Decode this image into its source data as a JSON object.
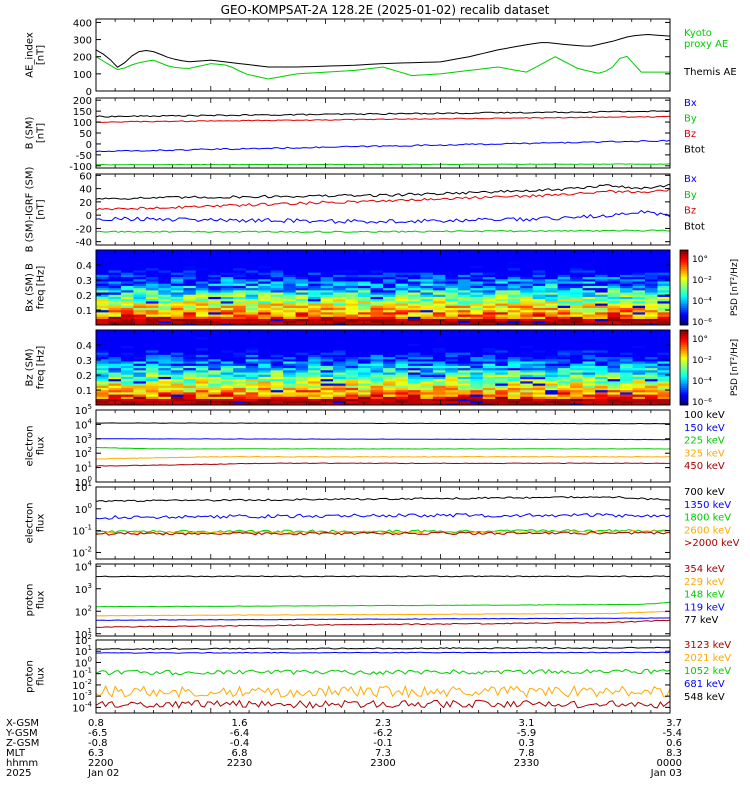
{
  "chart_data": {
    "type": "line",
    "title": "GEO-KOMPSAT-2A 128.2E (2025-01-02) recalib dataset",
    "colors": {
      "black": "#000000",
      "blue": "#0000ff",
      "green": "#00cc00",
      "red": "#dd0000",
      "orange": "#ffaa00",
      "darkred": "#aa0000"
    },
    "panels": [
      {
        "id": "ae",
        "ylabel": [
          "AE_index",
          "[nT]"
        ],
        "scale": "linear",
        "ylim": [
          0,
          420
        ],
        "ticks": [
          0,
          100,
          200,
          300,
          400
        ],
        "legend": [
          {
            "label": "Kyoto",
            "color": "green"
          },
          {
            "label": "proxy AE",
            "color": "green"
          },
          {
            "label": "Themis AE",
            "color": "black"
          }
        ],
        "series": [
          {
            "color": "black",
            "x": [
              0,
              0.02,
              0.04,
              0.06,
              0.08,
              0.1,
              0.13,
              0.16,
              0.2,
              0.25,
              0.3,
              0.35,
              0.4,
              0.45,
              0.5,
              0.55,
              0.6,
              0.65,
              0.7,
              0.75,
              0.78,
              0.82,
              0.86,
              0.9,
              0.93,
              0.96,
              1.0
            ],
            "y": [
              240,
              200,
              130,
              200,
              240,
              230,
              190,
              170,
              180,
              160,
              140,
              140,
              145,
              150,
              160,
              165,
              170,
              200,
              240,
              270,
              285,
              270,
              260,
              290,
              320,
              330,
              320
            ]
          },
          {
            "color": "green",
            "x": [
              0,
              0.02,
              0.04,
              0.06,
              0.08,
              0.1,
              0.13,
              0.16,
              0.2,
              0.23,
              0.26,
              0.3,
              0.35,
              0.4,
              0.45,
              0.5,
              0.55,
              0.6,
              0.65,
              0.7,
              0.75,
              0.8,
              0.84,
              0.88,
              0.9,
              0.92,
              0.95,
              1.0
            ],
            "y": [
              200,
              160,
              120,
              150,
              170,
              180,
              140,
              130,
              160,
              150,
              100,
              70,
              100,
              110,
              120,
              140,
              90,
              100,
              120,
              140,
              110,
              200,
              130,
              100,
              140,
              220,
              110,
              110
            ]
          }
        ]
      },
      {
        "id": "bsm",
        "ylabel": [
          "B (SM)",
          "[nT]"
        ],
        "scale": "linear",
        "ylim": [
          -110,
          210
        ],
        "ticks": [
          -100,
          -50,
          0,
          50,
          100,
          150,
          200
        ],
        "legend": [
          {
            "label": "Bx",
            "color": "blue"
          },
          {
            "label": "By",
            "color": "green"
          },
          {
            "label": "Bz",
            "color": "red"
          },
          {
            "label": "Btot",
            "color": "black"
          }
        ],
        "series": [
          {
            "color": "black",
            "x": [
              0,
              1
            ],
            "y": [
              125,
              150
            ],
            "noise": 3
          },
          {
            "color": "red",
            "x": [
              0,
              1
            ],
            "y": [
              100,
              125
            ],
            "noise": 2
          },
          {
            "color": "blue",
            "x": [
              0,
              1
            ],
            "y": [
              -35,
              15
            ],
            "noise": 3
          },
          {
            "color": "green",
            "x": [
              0,
              1
            ],
            "y": [
              -95,
              -92
            ],
            "noise": 1
          }
        ]
      },
      {
        "id": "bsmigrf",
        "ylabel": [
          "B (SM)-IGRF (SM)",
          "[nT]"
        ],
        "scale": "linear",
        "ylim": [
          -45,
          62
        ],
        "ticks": [
          -40,
          -20,
          0,
          20,
          40,
          60
        ],
        "legend": [
          {
            "label": "Bx",
            "color": "blue"
          },
          {
            "label": "By",
            "color": "green"
          },
          {
            "label": "Bz",
            "color": "red"
          },
          {
            "label": "Btot",
            "color": "black"
          }
        ],
        "series": [
          {
            "color": "black",
            "x": [
              0,
              0.5,
              0.8,
              0.9,
              0.95,
              1.0
            ],
            "y": [
              25,
              30,
              38,
              45,
              40,
              45
            ],
            "noise": 2
          },
          {
            "color": "red",
            "x": [
              0,
              0.5,
              0.8,
              0.9,
              0.95,
              1.0
            ],
            "y": [
              8,
              22,
              30,
              36,
              34,
              38
            ],
            "noise": 2
          },
          {
            "color": "blue",
            "x": [
              0,
              0.5,
              0.8,
              0.9,
              0.95,
              1.0
            ],
            "y": [
              -5,
              -10,
              -5,
              0,
              5,
              0
            ],
            "noise": 3
          },
          {
            "color": "green",
            "x": [
              0,
              0.5,
              1.0
            ],
            "y": [
              -25,
              -25,
              -23
            ],
            "noise": 1
          }
        ]
      },
      {
        "id": "specx",
        "ylabel": [
          "Bx (SM) B",
          "freq [Hz]"
        ],
        "scale": "spectrogram",
        "ylim": [
          0.0,
          0.5
        ],
        "ticks": [
          0.1,
          0.2,
          0.3,
          0.4
        ],
        "colorbar": {
          "label": "PSD [nT²/Hz]",
          "ticks": [
            "10°",
            "10⁻²",
            "10⁻⁴",
            "10⁻⁶"
          ]
        }
      },
      {
        "id": "specz",
        "ylabel": [
          "Bz (SM)",
          "freq [Hz]"
        ],
        "scale": "spectrogram",
        "ylim": [
          0.0,
          0.5
        ],
        "ticks": [
          0.1,
          0.2,
          0.3,
          0.4
        ],
        "colorbar": {
          "label": "PSD [nT²/Hz]",
          "ticks": [
            "10°",
            "10⁻²",
            "10⁻⁴",
            "10⁻⁶"
          ]
        }
      },
      {
        "id": "eflux1",
        "ylabel": [
          "electron",
          "flux"
        ],
        "scale": "log",
        "ylim": [
          0,
          5
        ],
        "ticks": [
          {
            "v": 0,
            "base": "10",
            "exp": "0"
          },
          {
            "v": 1,
            "base": "10",
            "exp": "1"
          },
          {
            "v": 2,
            "base": "10",
            "exp": "2"
          },
          {
            "v": 3,
            "base": "10",
            "exp": "3"
          },
          {
            "v": 4,
            "base": "10",
            "exp": "4"
          },
          {
            "v": 5,
            "base": "10",
            "exp": "5"
          }
        ],
        "legend": [
          {
            "label": "100 keV",
            "color": "black"
          },
          {
            "label": "150 keV",
            "color": "blue"
          },
          {
            "label": "225 keV",
            "color": "green"
          },
          {
            "label": "325 keV",
            "color": "orange"
          },
          {
            "label": "450 keV",
            "color": "darkred"
          }
        ],
        "series": [
          {
            "color": "black",
            "x": [
              0,
              1
            ],
            "y": [
              4.1,
              4.05
            ],
            "noise": 0.01
          },
          {
            "color": "blue",
            "x": [
              0,
              1
            ],
            "y": [
              3.0,
              2.95
            ],
            "noise": 0.01
          },
          {
            "color": "green",
            "x": [
              0,
              0.1,
              1
            ],
            "y": [
              2.4,
              2.3,
              2.3
            ],
            "noise": 0.01
          },
          {
            "color": "orange",
            "x": [
              0,
              0.2,
              1
            ],
            "y": [
              1.6,
              1.75,
              1.75
            ],
            "noise": 0.02
          },
          {
            "color": "darkred",
            "x": [
              0,
              0.3,
              1
            ],
            "y": [
              1.1,
              1.3,
              1.3
            ],
            "noise": 0.02
          }
        ]
      },
      {
        "id": "eflux2",
        "ylabel": [
          "electron",
          "flux"
        ],
        "scale": "log",
        "ylim": [
          -2.3,
          1
        ],
        "ticks": [
          {
            "v": -2,
            "base": "10",
            "exp": "-2"
          },
          {
            "v": -1,
            "base": "10",
            "exp": "-1"
          },
          {
            "v": 0,
            "base": "10",
            "exp": "0"
          },
          {
            "v": 1,
            "base": "10",
            "exp": "1"
          }
        ],
        "legend": [
          {
            "label": "700 keV",
            "color": "black"
          },
          {
            "label": "1350 keV",
            "color": "blue"
          },
          {
            "label": "1800 keV",
            "color": "green"
          },
          {
            "label": "2600 keV",
            "color": "orange"
          },
          {
            "label": ">2000 keV",
            "color": "darkred"
          }
        ],
        "series": [
          {
            "color": "black",
            "x": [
              0,
              0.5,
              0.9,
              1
            ],
            "y": [
              0.35,
              0.45,
              0.55,
              0.4
            ],
            "noise": 0.04
          },
          {
            "color": "blue",
            "x": [
              0,
              0.5,
              1
            ],
            "y": [
              -0.4,
              -0.3,
              -0.3
            ],
            "noise": 0.08
          },
          {
            "color": "green",
            "x": [
              0,
              1
            ],
            "y": [
              -1.05,
              -1.0
            ],
            "noise": 0.06
          },
          {
            "color": "orange",
            "x": [
              0,
              1
            ],
            "y": [
              -1.1,
              -1.05
            ],
            "noise": 0.06
          },
          {
            "color": "darkred",
            "x": [
              0,
              1
            ],
            "y": [
              -1.15,
              -1.1
            ],
            "noise": 0.06
          }
        ]
      },
      {
        "id": "pflux1",
        "ylabel": [
          "proton",
          "flux"
        ],
        "scale": "log",
        "ylim": [
          0.9,
          4.1
        ],
        "ticks": [
          {
            "v": 1,
            "base": "10",
            "exp": "1"
          },
          {
            "v": 2,
            "base": "10",
            "exp": "2"
          },
          {
            "v": 3,
            "base": "10",
            "exp": "3"
          },
          {
            "v": 4,
            "base": "10",
            "exp": "4"
          }
        ],
        "legend": [
          {
            "label": "354 keV",
            "color": "darkred"
          },
          {
            "label": "229 keV",
            "color": "orange"
          },
          {
            "label": "148 keV",
            "color": "green"
          },
          {
            "label": "119 keV",
            "color": "blue"
          },
          {
            "label": "77 keV",
            "color": "black"
          }
        ],
        "series": [
          {
            "color": "black",
            "x": [
              0,
              1
            ],
            "y": [
              3.55,
              3.55
            ],
            "noise": 0.02
          },
          {
            "color": "green",
            "x": [
              0,
              0.95,
              1
            ],
            "y": [
              2.2,
              2.3,
              2.4
            ],
            "noise": 0.01
          },
          {
            "color": "orange",
            "x": [
              0,
              0.9,
              1
            ],
            "y": [
              1.8,
              1.9,
              2.0
            ],
            "noise": 0.01
          },
          {
            "color": "blue",
            "x": [
              0,
              1
            ],
            "y": [
              1.6,
              1.7
            ],
            "noise": 0.01
          },
          {
            "color": "darkred",
            "x": [
              0,
              0.9,
              1
            ],
            "y": [
              1.3,
              1.5,
              1.6
            ],
            "noise": 0.02
          }
        ]
      },
      {
        "id": "pflux2",
        "ylabel": [
          "proton",
          "flux"
        ],
        "scale": "log",
        "ylim": [
          -4.5,
          2
        ],
        "ticks": [
          {
            "v": -4,
            "base": "10",
            "exp": "-4"
          },
          {
            "v": -3,
            "base": "10",
            "exp": "-3"
          },
          {
            "v": -2,
            "base": "10",
            "exp": "-2"
          },
          {
            "v": -1,
            "base": "10",
            "exp": "-1"
          },
          {
            "v": 0,
            "base": "10",
            "exp": "0"
          },
          {
            "v": 1,
            "base": "10",
            "exp": "1"
          },
          {
            "v": 2,
            "base": "10",
            "exp": "2"
          }
        ],
        "legend": [
          {
            "label": "3123 keV",
            "color": "darkred"
          },
          {
            "label": "2021 keV",
            "color": "orange"
          },
          {
            "label": "1052 keV",
            "color": "green"
          },
          {
            "label": "681 keV",
            "color": "blue"
          },
          {
            "label": "548 keV",
            "color": "black"
          }
        ],
        "series": [
          {
            "color": "black",
            "x": [
              0,
              1
            ],
            "y": [
              1.2,
              1.3
            ],
            "noise": 0.05
          },
          {
            "color": "blue",
            "x": [
              0,
              1
            ],
            "y": [
              0.85,
              0.9
            ],
            "noise": 0.03
          },
          {
            "color": "green",
            "x": [
              0,
              1
            ],
            "y": [
              -0.9,
              -0.8
            ],
            "noise": 0.2
          },
          {
            "color": "orange",
            "x": [
              0,
              1
            ],
            "y": [
              -2.6,
              -2.6
            ],
            "noise": 0.5
          },
          {
            "color": "darkred",
            "x": [
              0,
              1
            ],
            "y": [
              -3.7,
              -3.7
            ],
            "noise": 0.35
          }
        ]
      }
    ],
    "x_axis": {
      "row_labels": [
        "X-GSM",
        "Y-GSM",
        "Z-GSM",
        "MLT",
        "hhmm",
        "2025"
      ],
      "columns": [
        {
          "pos": 0.0,
          "values": [
            "0.8",
            "-6.5",
            "-0.8",
            "6.3",
            "2200",
            "Jan 02"
          ]
        },
        {
          "pos": 0.25,
          "values": [
            "1.6",
            "-6.4",
            "-0.4",
            "6.8",
            "2230",
            ""
          ]
        },
        {
          "pos": 0.5,
          "values": [
            "2.3",
            "-6.2",
            "-0.1",
            "7.3",
            "2300",
            ""
          ]
        },
        {
          "pos": 0.75,
          "values": [
            "3.1",
            "-5.9",
            "0.3",
            "7.8",
            "2330",
            ""
          ]
        },
        {
          "pos": 1.0,
          "values": [
            "3.7",
            "-5.4",
            "0.6",
            "8.3",
            "0000",
            "Jan 03"
          ]
        }
      ]
    }
  }
}
